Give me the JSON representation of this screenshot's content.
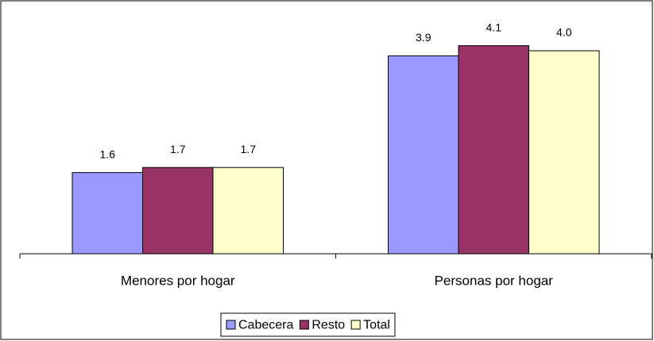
{
  "chart_data": {
    "type": "bar",
    "categories": [
      "Menores por hogar",
      "Personas por hogar"
    ],
    "series": [
      {
        "name": "Cabecera",
        "color": "#9999ff",
        "values": [
          1.6,
          3.9
        ],
        "value_labels": [
          "1.6",
          "3.9"
        ]
      },
      {
        "name": "Resto",
        "color": "#993366",
        "values": [
          1.7,
          4.1
        ],
        "value_labels": [
          "1.7",
          "4.1"
        ]
      },
      {
        "name": "Total",
        "color": "#ffffcc",
        "values": [
          1.7,
          4.0
        ],
        "value_labels": [
          "1.7",
          "4.0"
        ]
      }
    ],
    "legend": "bottom"
  }
}
